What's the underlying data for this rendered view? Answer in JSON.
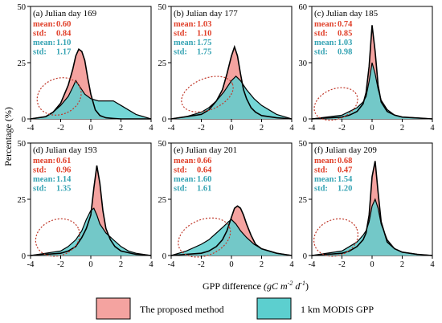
{
  "colors": {
    "proposed_fill": "#f4a3a0",
    "modis_fill": "#5ccfcf",
    "proposed_text": "#e0402a",
    "modis_text": "#35a3b3",
    "outline": "#000000",
    "ellipse": "#c0392b"
  },
  "figure": {
    "xlabel_prefix": "GPP difference ",
    "xlabel_unit": "(gC m",
    "xlabel_exp1": "-2",
    "xlabel_mid": " d",
    "xlabel_exp2": "-1",
    "xlabel_close": ")",
    "ylabel": "Percentage (%)"
  },
  "legend": {
    "proposed": "The proposed method",
    "modis": "1 km MODIS GPP"
  },
  "chart_data": [
    {
      "type": "area",
      "title": "(a) Julian day 169",
      "xlim": [
        -4,
        4
      ],
      "ylim": [
        0,
        50
      ],
      "xticks": [
        "-4",
        "-2",
        "0",
        "2",
        "4"
      ],
      "yticks": [
        "0",
        "25",
        "50"
      ],
      "stats": [
        {
          "label": "mean:",
          "value": "0.60",
          "series": "proposed"
        },
        {
          "label": "std:",
          "value": "0.84",
          "series": "proposed"
        },
        {
          "label": "mean:",
          "value": "1.10",
          "series": "modis"
        },
        {
          "label": "std:",
          "value": "1.17",
          "series": "modis"
        }
      ],
      "ellipse": {
        "cx": -2.1,
        "cy": 10,
        "rx": 1.5,
        "ry": 8,
        "angle": -22
      },
      "series": [
        {
          "name": "The proposed method",
          "x": [
            -4,
            -3,
            -2.5,
            -2,
            -1.5,
            -1.2,
            -1.0,
            -0.8,
            -0.6,
            -0.4,
            -0.2,
            0,
            0.3,
            0.6,
            1,
            1.5,
            2,
            3,
            4
          ],
          "y": [
            0,
            1,
            3,
            7,
            15,
            22,
            28,
            31,
            30,
            26,
            18,
            11,
            4,
            1.5,
            0.5,
            0.2,
            0,
            0,
            0
          ]
        },
        {
          "name": "1 km MODIS GPP",
          "x": [
            -4,
            -3,
            -2.5,
            -2,
            -1.5,
            -1.2,
            -1.0,
            -0.8,
            -0.6,
            -0.4,
            -0.2,
            0,
            0.5,
            1,
            1.5,
            2,
            2.5,
            3,
            4
          ],
          "y": [
            0,
            1,
            3,
            6,
            10,
            14,
            17,
            15,
            13,
            11,
            10,
            9,
            8,
            8,
            8,
            6,
            4,
            2,
            0
          ]
        }
      ]
    },
    {
      "type": "area",
      "title": "(b) Julian day 177",
      "xlim": [
        -4,
        4
      ],
      "ylim": [
        0,
        50
      ],
      "xticks": [
        "-4",
        "-2",
        "0",
        "2",
        "4"
      ],
      "yticks": [
        "0",
        "25",
        "50"
      ],
      "stats": [
        {
          "label": "mean:",
          "value": "1.03",
          "series": "proposed"
        },
        {
          "label": "std:",
          "value": "1.10",
          "series": "proposed"
        },
        {
          "label": "mean:",
          "value": "1.75",
          "series": "modis"
        },
        {
          "label": "std:",
          "value": "1.75",
          "series": "modis"
        }
      ],
      "ellipse": {
        "cx": -1.6,
        "cy": 11,
        "rx": 1.8,
        "ry": 7,
        "angle": -22
      },
      "series": [
        {
          "name": "The proposed method",
          "x": [
            -4,
            -3,
            -2,
            -1.5,
            -1,
            -0.6,
            -0.3,
            0,
            0.2,
            0.4,
            0.6,
            0.8,
            1.0,
            1.3,
            1.6,
            2,
            3,
            4
          ],
          "y": [
            0,
            1,
            2,
            4,
            8,
            13,
            20,
            28,
            32,
            28,
            20,
            13,
            9,
            5,
            3,
            1.5,
            0.5,
            0
          ]
        },
        {
          "name": "1 km MODIS GPP",
          "x": [
            -4,
            -3,
            -2,
            -1.5,
            -1,
            -0.5,
            0,
            0.3,
            0.6,
            1,
            1.5,
            2,
            2.5,
            3,
            3.5,
            4
          ],
          "y": [
            0,
            1,
            3,
            5,
            8,
            12,
            17,
            19,
            17,
            13,
            9,
            6,
            4,
            2,
            1,
            0
          ]
        }
      ]
    },
    {
      "type": "area",
      "title": "(c) Julian day 185",
      "xlim": [
        -4,
        4
      ],
      "ylim": [
        0,
        60
      ],
      "xticks": [
        "-4",
        "-2",
        "0",
        "2",
        "4"
      ],
      "yticks": [
        "0",
        "30",
        "60"
      ],
      "stats": [
        {
          "label": "mean:",
          "value": "0.74",
          "series": "proposed"
        },
        {
          "label": "std:",
          "value": "0.85",
          "series": "proposed"
        },
        {
          "label": "mean:",
          "value": "1.03",
          "series": "modis"
        },
        {
          "label": "std:",
          "value": "0.98",
          "series": "modis"
        }
      ],
      "ellipse": {
        "cx": -2.4,
        "cy": 8,
        "rx": 1.5,
        "ry": 8,
        "angle": -22
      },
      "series": [
        {
          "name": "The proposed method",
          "x": [
            -4,
            -2,
            -1.5,
            -1,
            -0.6,
            -0.4,
            -0.2,
            0,
            0.2,
            0.4,
            0.6,
            1,
            1.5,
            2,
            3,
            4
          ],
          "y": [
            0,
            1,
            2,
            4,
            8,
            14,
            28,
            50,
            36,
            18,
            9,
            4,
            2,
            1,
            0.5,
            0
          ]
        },
        {
          "name": "1 km MODIS GPP",
          "x": [
            -4,
            -2,
            -1.5,
            -1,
            -0.6,
            -0.4,
            -0.2,
            0,
            0.2,
            0.4,
            0.6,
            1,
            1.5,
            2,
            3,
            4
          ],
          "y": [
            0,
            2,
            4,
            6,
            9,
            12,
            20,
            30,
            24,
            16,
            10,
            5,
            2,
            1,
            0.5,
            0
          ]
        }
      ]
    },
    {
      "type": "area",
      "title": "(d) Julian day 193",
      "xlim": [
        -4,
        4
      ],
      "ylim": [
        0,
        50
      ],
      "xticks": [
        "-4",
        "-2",
        "0",
        "2",
        "4"
      ],
      "yticks": [
        "0",
        "25",
        "50"
      ],
      "stats": [
        {
          "label": "mean:",
          "value": "0.61",
          "series": "proposed"
        },
        {
          "label": "std:",
          "value": "0.96",
          "series": "proposed"
        },
        {
          "label": "mean:",
          "value": "1.14",
          "series": "modis"
        },
        {
          "label": "std:",
          "value": "1.35",
          "series": "modis"
        }
      ],
      "ellipse": {
        "cx": -2.2,
        "cy": 8,
        "rx": 1.5,
        "ry": 8,
        "angle": -22
      },
      "series": [
        {
          "name": "The proposed method",
          "x": [
            -4,
            -3,
            -2,
            -1.5,
            -1,
            -0.6,
            -0.3,
            0,
            0.2,
            0.4,
            0.6,
            0.8,
            1.0,
            1.3,
            1.6,
            2,
            3,
            4
          ],
          "y": [
            0,
            0.5,
            1,
            2,
            4,
            8,
            12,
            18,
            30,
            40,
            32,
            20,
            12,
            7,
            4,
            2,
            0.5,
            0
          ]
        },
        {
          "name": "1 km MODIS GPP",
          "x": [
            -4,
            -3,
            -2,
            -1.5,
            -1,
            -0.6,
            -0.3,
            0,
            0.2,
            0.4,
            0.6,
            1,
            1.5,
            2,
            2.5,
            3,
            4
          ],
          "y": [
            0,
            1,
            2,
            4,
            7,
            11,
            16,
            20,
            21,
            18,
            14,
            10,
            7,
            4,
            2,
            1,
            0
          ]
        }
      ]
    },
    {
      "type": "area",
      "title": "(e) Julian day 201",
      "xlim": [
        -4,
        4
      ],
      "ylim": [
        0,
        50
      ],
      "xticks": [
        "-4",
        "-2",
        "0",
        "2",
        "4"
      ],
      "yticks": [
        "0",
        "25",
        "50"
      ],
      "stats": [
        {
          "label": "mean:",
          "value": "0.66",
          "series": "proposed"
        },
        {
          "label": "std:",
          "value": "0.64",
          "series": "proposed"
        },
        {
          "label": "mean:",
          "value": "1.60",
          "series": "modis"
        },
        {
          "label": "std:",
          "value": "1.61",
          "series": "modis"
        }
      ],
      "ellipse": {
        "cx": -1.8,
        "cy": 8,
        "rx": 1.8,
        "ry": 8,
        "angle": -22
      },
      "series": [
        {
          "name": "The proposed method",
          "x": [
            -4,
            -3,
            -2,
            -1.5,
            -1,
            -0.6,
            -0.3,
            0,
            0.2,
            0.4,
            0.6,
            0.8,
            1.0,
            1.3,
            1.6,
            2,
            3,
            4
          ],
          "y": [
            0,
            0.5,
            1,
            2,
            4,
            7,
            11,
            17,
            21,
            22,
            21,
            18,
            14,
            9,
            5,
            3,
            1,
            0
          ]
        },
        {
          "name": "1 km MODIS GPP",
          "x": [
            -4,
            -3,
            -2,
            -1.5,
            -1,
            -0.5,
            -0.2,
            0,
            0.3,
            0.6,
            1,
            1.5,
            2,
            3,
            4
          ],
          "y": [
            0,
            2,
            5,
            7,
            10,
            13,
            15,
            16,
            14,
            11,
            8,
            5,
            3,
            1,
            0
          ]
        }
      ]
    },
    {
      "type": "area",
      "title": "(f) Julian day 209",
      "xlim": [
        -4,
        4
      ],
      "ylim": [
        0,
        50
      ],
      "xticks": [
        "-4",
        "-2",
        "0",
        "2",
        "4"
      ],
      "yticks": [
        "0",
        "25",
        "50"
      ],
      "stats": [
        {
          "label": "mean:",
          "value": "0.68",
          "series": "proposed"
        },
        {
          "label": "std:",
          "value": "0.47",
          "series": "proposed"
        },
        {
          "label": "mean:",
          "value": "1.54",
          "series": "modis"
        },
        {
          "label": "std:",
          "value": "1.20",
          "series": "modis"
        }
      ],
      "ellipse": {
        "cx": -2.4,
        "cy": 8,
        "rx": 1.5,
        "ry": 8,
        "angle": -22
      },
      "series": [
        {
          "name": "The proposed method",
          "x": [
            -4,
            -2,
            -1.5,
            -1,
            -0.6,
            -0.4,
            -0.2,
            0,
            0.2,
            0.4,
            0.6,
            1,
            1.5,
            2,
            3,
            4
          ],
          "y": [
            0,
            1,
            2,
            4,
            7,
            10,
            18,
            35,
            42,
            28,
            15,
            6,
            3,
            1.5,
            0.5,
            0
          ]
        },
        {
          "name": "1 km MODIS GPP",
          "x": [
            -4,
            -2,
            -1.5,
            -1,
            -0.6,
            -0.4,
            -0.2,
            0,
            0.2,
            0.4,
            0.6,
            1,
            1.5,
            2,
            3,
            4
          ],
          "y": [
            0,
            2,
            4,
            6,
            9,
            11,
            15,
            22,
            25,
            21,
            14,
            7,
            3,
            1.5,
            0.5,
            0
          ]
        }
      ]
    }
  ]
}
